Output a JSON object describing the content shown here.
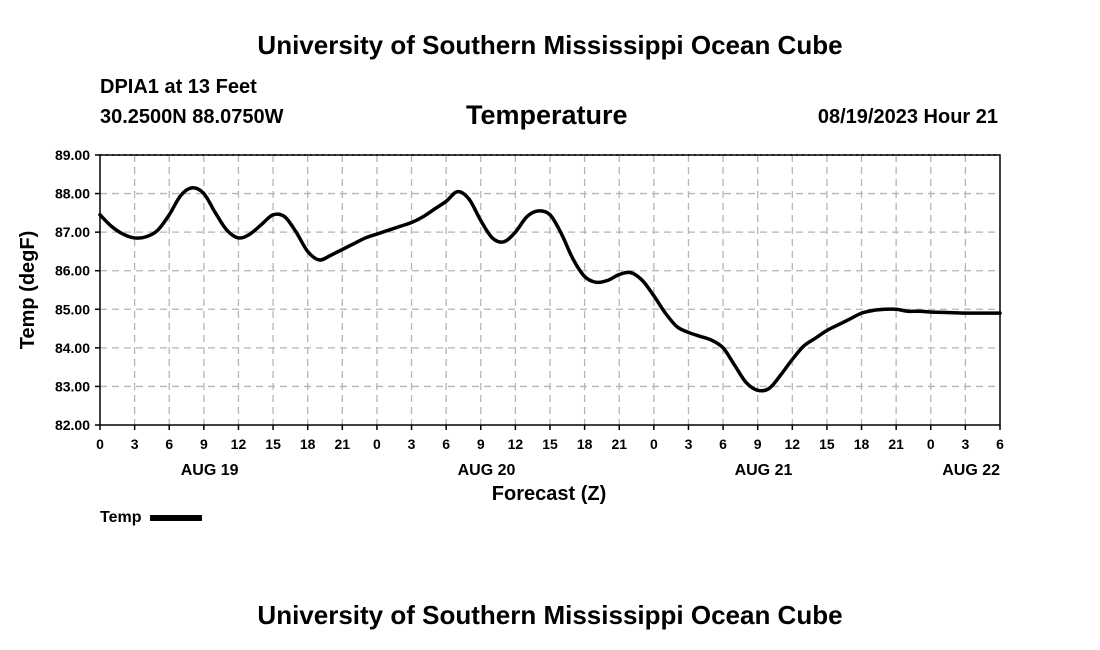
{
  "header": {
    "title": "University of Southern Mississippi Ocean Cube",
    "station": "DPIA1 at 13 Feet",
    "coords": "30.2500N  88.0750W",
    "variable": "Temperature",
    "datetime": "08/19/2023 Hour 21"
  },
  "footer": {
    "title": "University of Southern Mississippi Ocean Cube"
  },
  "legend": {
    "label": "Temp",
    "color": "#000000"
  },
  "chart_data": {
    "type": "line",
    "title": "Temperature",
    "xlabel": "Forecast (Z)",
    "ylabel": "Temp (degF)",
    "ylim": [
      82,
      89
    ],
    "yticks": [
      "82.00",
      "83.00",
      "84.00",
      "85.00",
      "86.00",
      "87.00",
      "88.00",
      "89.00"
    ],
    "xlim": [
      0,
      78
    ],
    "xtick_step": 3,
    "xtick_labels": [
      "0",
      "3",
      "6",
      "9",
      "12",
      "15",
      "18",
      "21",
      "0",
      "3",
      "6",
      "9",
      "12",
      "15",
      "18",
      "21",
      "0",
      "3",
      "6",
      "9",
      "12",
      "15",
      "18",
      "21",
      "0",
      "3",
      "6"
    ],
    "day_labels": [
      {
        "label": "AUG 19",
        "x": 9.5
      },
      {
        "label": "AUG 20",
        "x": 33.5
      },
      {
        "label": "AUG 21",
        "x": 57.5
      },
      {
        "label": "AUG 22",
        "x": 75.5
      }
    ],
    "grid": true,
    "series": [
      {
        "name": "Temp",
        "x": [
          0,
          1,
          2,
          3,
          4,
          5,
          6,
          7,
          8,
          9,
          10,
          11,
          12,
          13,
          14,
          15,
          16,
          17,
          18,
          19,
          20,
          21,
          22,
          23,
          24,
          25,
          26,
          27,
          28,
          29,
          30,
          31,
          32,
          33,
          34,
          35,
          36,
          37,
          38,
          39,
          40,
          41,
          42,
          43,
          44,
          45,
          46,
          47,
          48,
          49,
          50,
          51,
          52,
          53,
          54,
          55,
          56,
          57,
          58,
          59,
          60,
          61,
          62,
          63,
          64,
          65,
          66,
          67,
          68,
          69,
          70,
          71,
          72,
          73,
          74,
          75,
          76,
          77,
          78
        ],
        "values": [
          87.45,
          87.15,
          86.95,
          86.85,
          86.88,
          87.05,
          87.45,
          87.95,
          88.15,
          88.0,
          87.5,
          87.05,
          86.85,
          86.95,
          87.2,
          87.45,
          87.4,
          87.0,
          86.5,
          86.28,
          86.4,
          86.55,
          86.7,
          86.85,
          86.95,
          87.05,
          87.15,
          87.25,
          87.4,
          87.6,
          87.8,
          88.05,
          87.85,
          87.3,
          86.85,
          86.75,
          87.0,
          87.4,
          87.55,
          87.45,
          86.95,
          86.3,
          85.85,
          85.7,
          85.75,
          85.9,
          85.95,
          85.75,
          85.35,
          84.9,
          84.55,
          84.4,
          84.3,
          84.2,
          84.0,
          83.55,
          83.1,
          82.9,
          82.95,
          83.3,
          83.7,
          84.05,
          84.25,
          84.45,
          84.6,
          84.75,
          84.9,
          84.97,
          85.0,
          85.0,
          84.95,
          84.95,
          84.93,
          84.92,
          84.91,
          84.9,
          84.9,
          84.9,
          84.9
        ]
      }
    ]
  }
}
